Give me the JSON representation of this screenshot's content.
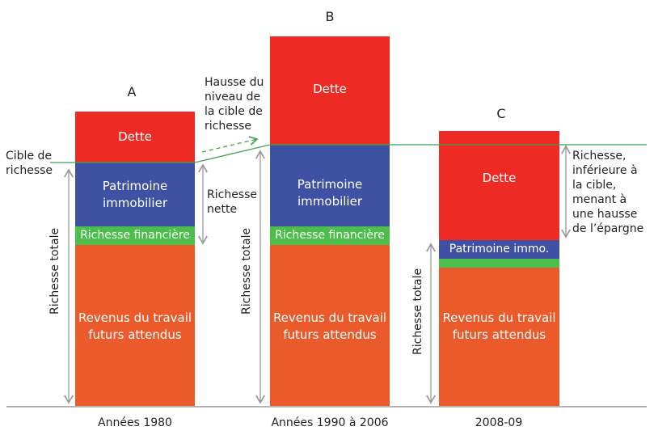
{
  "bars": [
    {
      "letter": "A",
      "period": "Années 1980",
      "dette": "Dette",
      "patrimoine": "Patrimoine immobilier",
      "financiere": "Richesse financière",
      "revenus": "Revenus du travail futurs attendus"
    },
    {
      "letter": "B",
      "period": "Années 1990 à 2006",
      "dette": "Dette",
      "patrimoine": "Patrimoine immobilier",
      "financiere": "Richesse financière",
      "revenus": "Revenus du travail futurs attendus"
    },
    {
      "letter": "C",
      "period": "2008-09",
      "dette": "Dette",
      "patrimoine": "Patrimoine immo.",
      "revenus": "Revenus du travail futurs attendus"
    }
  ],
  "labels": {
    "cible": "Cible de richesse",
    "hausse": "Hausse du niveau de la cible de richesse",
    "nette": "Richesse nette",
    "totale": "Richesse totale",
    "inferieure": "Richesse, inférieure à la cible, menant à une hausse de l’épargne"
  },
  "colors": {
    "dette": "#ee2a24",
    "patrimoine": "#3f51a3",
    "financiere": "#4cbe4c",
    "revenus": "#eb5a2a",
    "target": "#3fa34d",
    "arrow": "#999999"
  }
}
